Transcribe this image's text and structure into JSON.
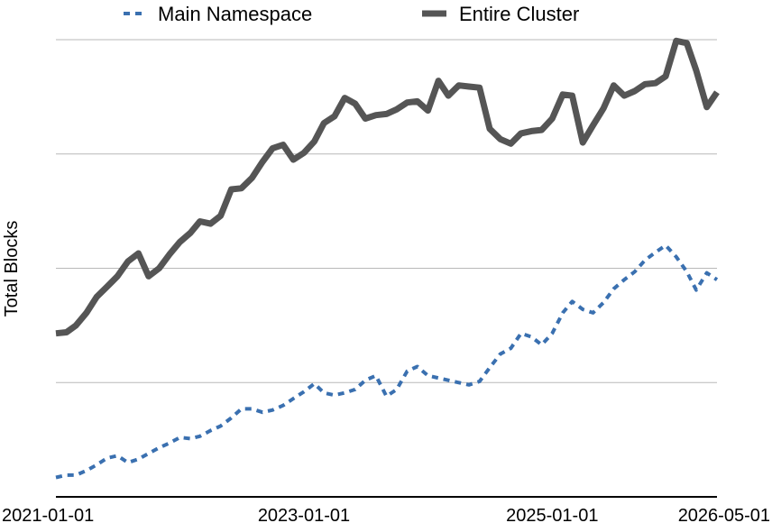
{
  "chart_data": {
    "type": "line",
    "title": "",
    "xlabel": "",
    "ylabel": "Total Blocks",
    "x_axis_type": "date",
    "xlim": [
      "2021-01-01",
      "2026-05-01"
    ],
    "ylim": [
      0,
      4
    ],
    "grid": "horizontal",
    "legend_position": "top",
    "x_tick_labels": [
      "2021-01-01",
      "2023-01-01",
      "2025-01-01",
      "2026-05-01"
    ],
    "x_tick_values": [
      "2021-01-01",
      "2023-01-01",
      "2025-01-01",
      "2026-05-01"
    ],
    "y_gridlines": [
      1,
      2,
      3,
      4
    ],
    "y_tick_labels_visible": false,
    "x": [
      "2021-01-01",
      "2021-02-01",
      "2021-03-01",
      "2021-04-01",
      "2021-05-01",
      "2021-06-01",
      "2021-07-01",
      "2021-08-01",
      "2021-09-01",
      "2021-10-01",
      "2021-11-01",
      "2021-12-01",
      "2022-01-01",
      "2022-02-01",
      "2022-03-01",
      "2022-04-01",
      "2022-05-01",
      "2022-06-01",
      "2022-07-01",
      "2022-08-01",
      "2022-09-01",
      "2022-10-01",
      "2022-11-01",
      "2022-12-01",
      "2023-01-01",
      "2023-02-01",
      "2023-03-01",
      "2023-04-01",
      "2023-05-01",
      "2023-06-01",
      "2023-07-01",
      "2023-08-01",
      "2023-09-01",
      "2023-10-01",
      "2023-11-01",
      "2023-12-01",
      "2024-01-01",
      "2024-02-01",
      "2024-03-01",
      "2024-04-01",
      "2024-05-01",
      "2024-06-01",
      "2024-07-01",
      "2024-08-01",
      "2024-09-01",
      "2024-10-01",
      "2024-11-01",
      "2024-12-01",
      "2025-01-01",
      "2025-02-01",
      "2025-03-01",
      "2025-04-01",
      "2025-05-01",
      "2025-06-01",
      "2025-07-01",
      "2025-08-01",
      "2025-09-01",
      "2025-10-01",
      "2025-11-01",
      "2025-12-01",
      "2026-01-01",
      "2026-02-01",
      "2026-03-01",
      "2026-04-01",
      "2026-05-01"
    ],
    "series": [
      {
        "name": "Main Namespace",
        "style": "dashed",
        "color": "#3a70b0",
        "values": [
          0.17,
          0.19,
          0.19,
          0.23,
          0.28,
          0.34,
          0.36,
          0.3,
          0.33,
          0.38,
          0.43,
          0.47,
          0.52,
          0.51,
          0.53,
          0.58,
          0.62,
          0.69,
          0.77,
          0.77,
          0.74,
          0.76,
          0.8,
          0.86,
          0.92,
          0.99,
          0.91,
          0.89,
          0.91,
          0.94,
          1.02,
          1.06,
          0.88,
          0.94,
          1.1,
          1.14,
          1.06,
          1.04,
          1.02,
          1.0,
          0.98,
          1.01,
          1.13,
          1.25,
          1.3,
          1.43,
          1.4,
          1.33,
          1.43,
          1.61,
          1.71,
          1.64,
          1.61,
          1.7,
          1.82,
          1.9,
          1.97,
          2.07,
          2.14,
          2.2,
          2.1,
          1.97,
          1.81,
          1.96,
          1.9
        ]
      },
      {
        "name": "Entire Cluster",
        "style": "solid",
        "color": "#555555",
        "values": [
          1.43,
          1.44,
          1.5,
          1.61,
          1.75,
          1.84,
          1.93,
          2.06,
          2.13,
          1.93,
          2.0,
          2.12,
          2.23,
          2.31,
          2.41,
          2.39,
          2.46,
          2.69,
          2.7,
          2.79,
          2.93,
          3.05,
          3.08,
          2.95,
          3.01,
          3.11,
          3.27,
          3.33,
          3.49,
          3.44,
          3.31,
          3.34,
          3.35,
          3.39,
          3.45,
          3.46,
          3.38,
          3.64,
          3.51,
          3.6,
          3.59,
          3.58,
          3.22,
          3.13,
          3.09,
          3.18,
          3.2,
          3.21,
          3.31,
          3.52,
          3.51,
          3.1,
          3.25,
          3.4,
          3.6,
          3.51,
          3.55,
          3.61,
          3.62,
          3.68,
          3.99,
          3.97,
          3.73,
          3.41,
          3.54
        ]
      }
    ]
  }
}
